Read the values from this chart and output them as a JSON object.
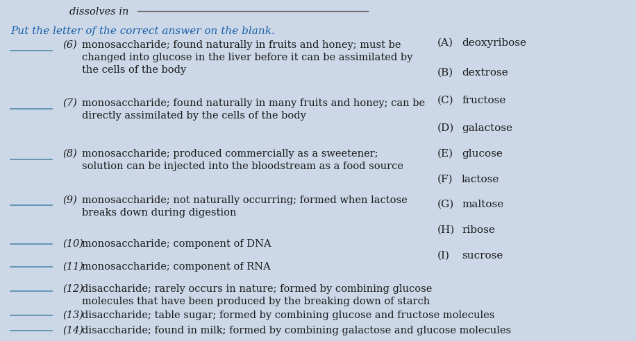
{
  "bg_color": "#ccd8e8",
  "title_top": "dissolves in",
  "instruction": "Put the letter of the correct answer on the blank.",
  "instruction_color": "#1a5fa8",
  "left_items": [
    {
      "num": "(6)",
      "text": "monosaccharide; found naturally in fruits and honey; must be\nchanged into glucose in the liver before it can be assimilated by\nthe cells of the body"
    },
    {
      "num": "(7)",
      "text": "monosaccharide; found naturally in many fruits and honey; can be\ndirectly assimilated by the cells of the body"
    },
    {
      "num": "(8)",
      "text": "monosaccharide; produced commercially as a sweetener;\nsolution can be injected into the bloodstream as a food source"
    },
    {
      "num": "(9)",
      "text": "monosaccharide; not naturally occurring; formed when lactose\nbreaks down during digestion"
    },
    {
      "num": "(10)",
      "text": "monosaccharide; component of DNA"
    },
    {
      "num": "(11)",
      "text": "monosaccharide; component of RNA"
    },
    {
      "num": "(12)",
      "text": "disaccharide; rarely occurs in nature; formed by combining glucose\nmolecules that have been produced by the breaking down of starch"
    },
    {
      "num": "(13)",
      "text": "disaccharide; table sugar; formed by combining glucose and fructose molecules"
    },
    {
      "num": "(14)",
      "text": "disaccharide; found in milk; formed by combining galactose and glucose molecules"
    }
  ],
  "right_items": [
    [
      "(A)",
      "deoxyribose"
    ],
    [
      "(B)",
      "dextrose"
    ],
    [
      "(C)",
      "fructose"
    ],
    [
      "(D)",
      "galactose"
    ],
    [
      "(E)",
      "glucose"
    ],
    [
      "(F)",
      "lactose"
    ],
    [
      "(G)",
      "maltose"
    ],
    [
      "(H)",
      "ribose"
    ],
    [
      "(I)",
      "sucrose"
    ]
  ],
  "text_color": "#1a1a1a",
  "blank_line_color": "#5588aa",
  "font_size_main": 10.5,
  "font_size_right": 11.0,
  "font_size_title": 10.5,
  "font_size_instruction": 11.0
}
